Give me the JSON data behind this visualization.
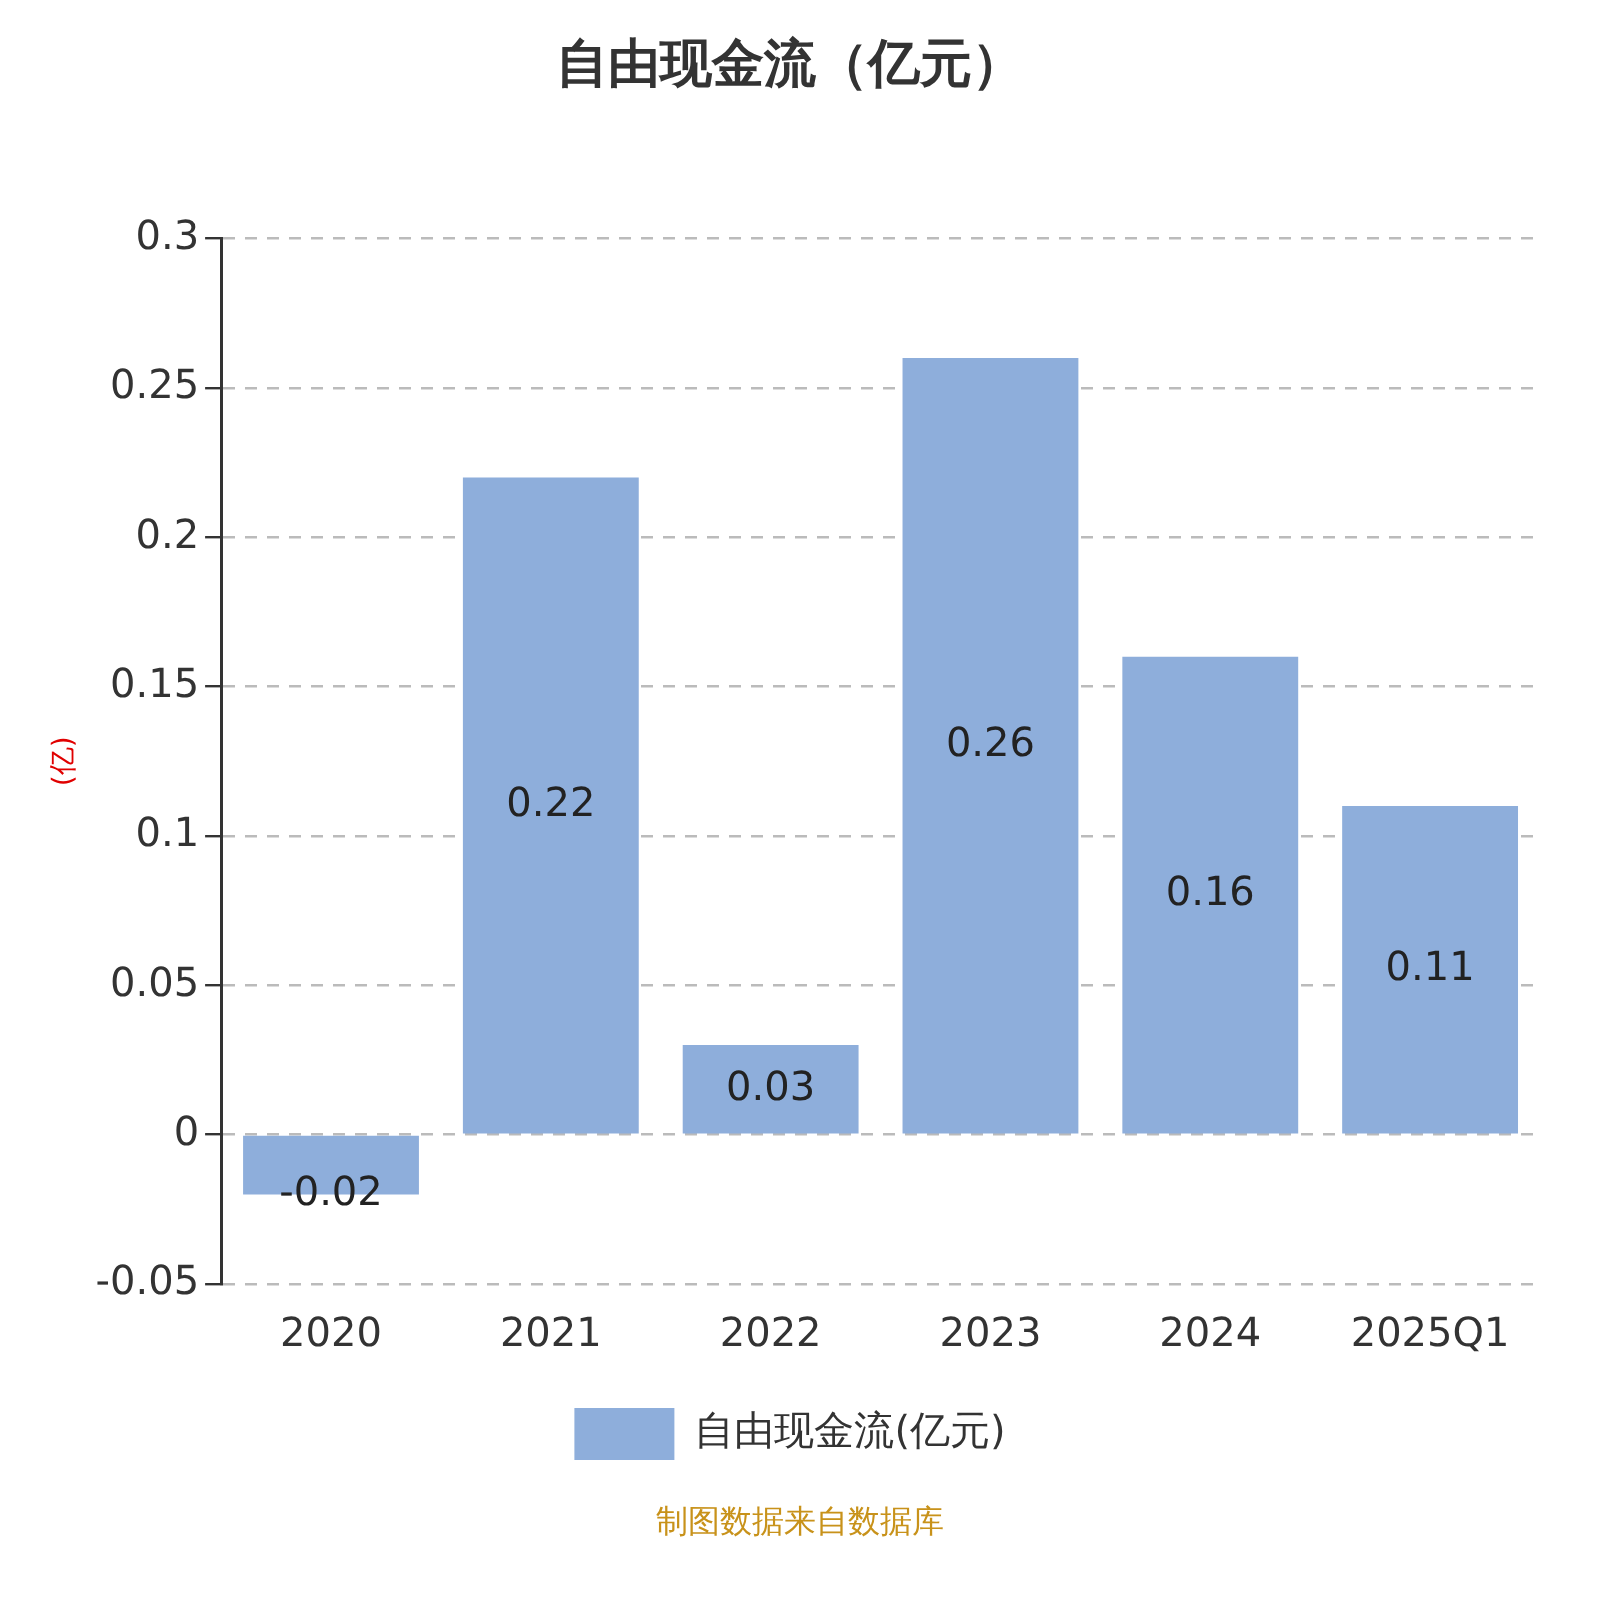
{
  "chart_data": {
    "type": "bar",
    "title": "自由现金流（亿元）",
    "ylabel": "(亿)",
    "categories": [
      "2020",
      "2021",
      "2022",
      "2023",
      "2024",
      "2025Q1"
    ],
    "series": [
      {
        "name": "自由现金流(亿元)",
        "color": "#8eaedb",
        "values": [
          -0.02,
          0.22,
          0.03,
          0.26,
          0.16,
          0.11
        ]
      }
    ],
    "ylim": [
      -0.05,
      0.3
    ],
    "yticks": [
      -0.05,
      0,
      0.05,
      0.1,
      0.15,
      0.2,
      0.25,
      0.3
    ],
    "grid": "y",
    "legend": "bottom",
    "data_labels": true,
    "annotations": [
      "制图数据来自数据库"
    ]
  }
}
